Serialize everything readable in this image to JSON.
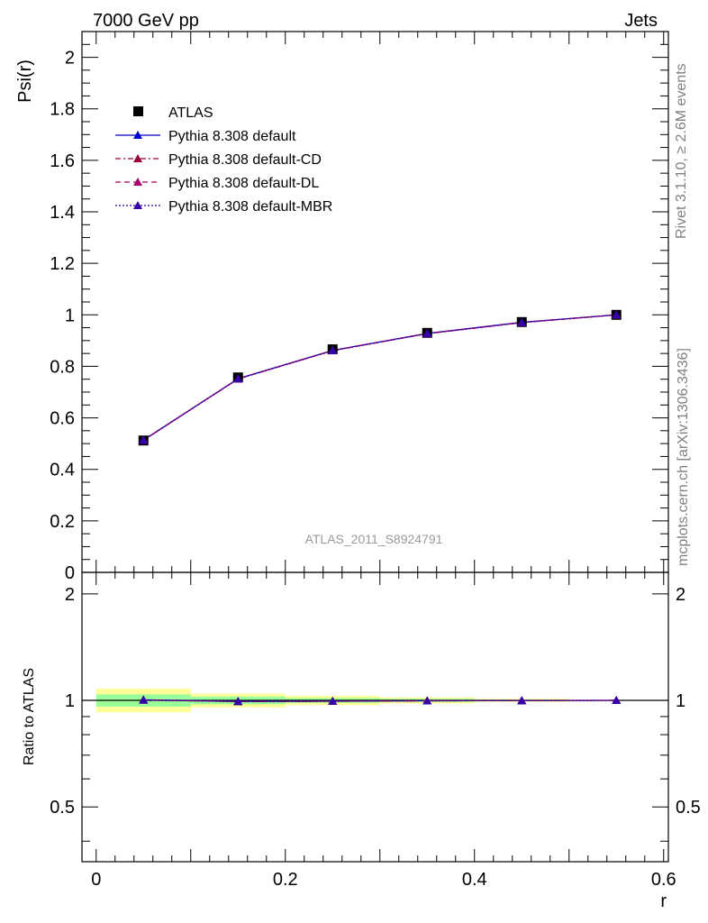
{
  "header": {
    "left_label": "7000 GeV pp",
    "right_label": "Jets"
  },
  "side_labels": {
    "rivet": "Rivet 3.1.10, ≥ 2.6M events",
    "mcplots": "mcplots.cern.ch [arXiv:1306.3436]"
  },
  "watermark": "ATLAS_2011_S8924791",
  "chart_data": [
    {
      "type": "scatter",
      "ylabel": "Psi(r)",
      "xlim": [
        -0.015,
        0.605
      ],
      "ylim": [
        0,
        2.1
      ],
      "x_ticks": [
        0,
        0.2,
        0.4,
        0.6
      ],
      "y_ticks": [
        {
          "v": 0,
          "label": "0"
        },
        {
          "v": 0.2,
          "label": "0.2"
        },
        {
          "v": 0.4,
          "label": "0.4"
        },
        {
          "v": 0.6,
          "label": "0.6"
        },
        {
          "v": 0.8,
          "label": "0.8"
        },
        {
          "v": 1.0,
          "label": "1"
        },
        {
          "v": 1.2,
          "label": "1.2"
        },
        {
          "v": 1.4,
          "label": "1.4"
        },
        {
          "v": 1.6,
          "label": "1.6"
        },
        {
          "v": 1.8,
          "label": "1.8"
        },
        {
          "v": 2.0,
          "label": "2"
        }
      ],
      "x": [
        0.05,
        0.15,
        0.25,
        0.35,
        0.45,
        0.55
      ],
      "series": [
        {
          "name": "ATLAS",
          "marker": "square",
          "color": "#000000",
          "values": [
            0.512,
            0.757,
            0.866,
            0.93,
            0.972,
            1.0
          ]
        },
        {
          "name": "Pythia 8.308 default",
          "marker": "triangle",
          "line": "solid",
          "color": "#0000cc",
          "values": [
            0.514,
            0.752,
            0.862,
            0.928,
            0.971,
            1.0
          ]
        },
        {
          "name": "Pythia 8.308 default-CD",
          "marker": "triangle",
          "line": "dashdot",
          "color": "#990033",
          "values": [
            0.513,
            0.751,
            0.861,
            0.927,
            0.97,
            1.0
          ]
        },
        {
          "name": "Pythia 8.308 default-DL",
          "marker": "triangle",
          "line": "dashed",
          "color": "#aa0066",
          "values": [
            0.513,
            0.751,
            0.861,
            0.927,
            0.97,
            1.0
          ]
        },
        {
          "name": "Pythia 8.308 default-MBR",
          "marker": "triangle",
          "line": "dotted",
          "color": "#3300aa",
          "values": [
            0.513,
            0.751,
            0.861,
            0.927,
            0.97,
            1.0
          ]
        }
      ],
      "legend_position": "top-left"
    },
    {
      "type": "scatter",
      "ylabel": "Ratio to ATLAS",
      "xlabel": "r",
      "xlim": [
        -0.015,
        0.605
      ],
      "ylim": [
        0.35,
        2.3
      ],
      "y_scale": "log",
      "y_ticks": [
        {
          "v": 0.5,
          "label": "0.5"
        },
        {
          "v": 1,
          "label": "1"
        },
        {
          "v": 2,
          "label": "2"
        }
      ],
      "x_ticks": [
        {
          "v": 0,
          "label": "0"
        },
        {
          "v": 0.2,
          "label": "0.2"
        },
        {
          "v": 0.4,
          "label": "0.4"
        },
        {
          "v": 0.6,
          "label": "0.6"
        }
      ],
      "uncertainty_bands": [
        {
          "x0": 0.0,
          "x1": 0.1,
          "stat_lo": 0.96,
          "stat_hi": 1.04,
          "total_lo": 0.925,
          "total_hi": 1.08
        },
        {
          "x0": 0.1,
          "x1": 0.2,
          "stat_lo": 0.975,
          "stat_hi": 1.025,
          "total_lo": 0.955,
          "total_hi": 1.045
        },
        {
          "x0": 0.2,
          "x1": 0.3,
          "stat_lo": 0.985,
          "stat_hi": 1.015,
          "total_lo": 0.97,
          "total_hi": 1.03
        },
        {
          "x0": 0.3,
          "x1": 0.4,
          "stat_lo": 0.99,
          "stat_hi": 1.01,
          "total_lo": 0.98,
          "total_hi": 1.02
        },
        {
          "x0": 0.4,
          "x1": 0.5,
          "stat_lo": 0.995,
          "stat_hi": 1.005,
          "total_lo": 0.99,
          "total_hi": 1.01
        }
      ],
      "band_colors": {
        "stat": "#99ff99",
        "total": "#ffff99"
      },
      "x": [
        0.05,
        0.15,
        0.25,
        0.35,
        0.45,
        0.55
      ],
      "series": [
        {
          "name": "Pythia 8.308 default",
          "color": "#0000cc",
          "values": [
            1.004,
            0.994,
            0.995,
            0.998,
            0.999,
            1.0
          ]
        },
        {
          "name": "Pythia 8.308 default-CD",
          "color": "#990033",
          "values": [
            1.002,
            0.992,
            0.994,
            0.997,
            0.998,
            1.0
          ]
        },
        {
          "name": "Pythia 8.308 default-DL",
          "color": "#aa0066",
          "values": [
            1.002,
            0.992,
            0.994,
            0.997,
            0.998,
            1.0
          ]
        },
        {
          "name": "Pythia 8.308 default-MBR",
          "color": "#3300aa",
          "values": [
            1.002,
            0.992,
            0.994,
            0.997,
            0.998,
            1.0
          ]
        }
      ]
    }
  ]
}
